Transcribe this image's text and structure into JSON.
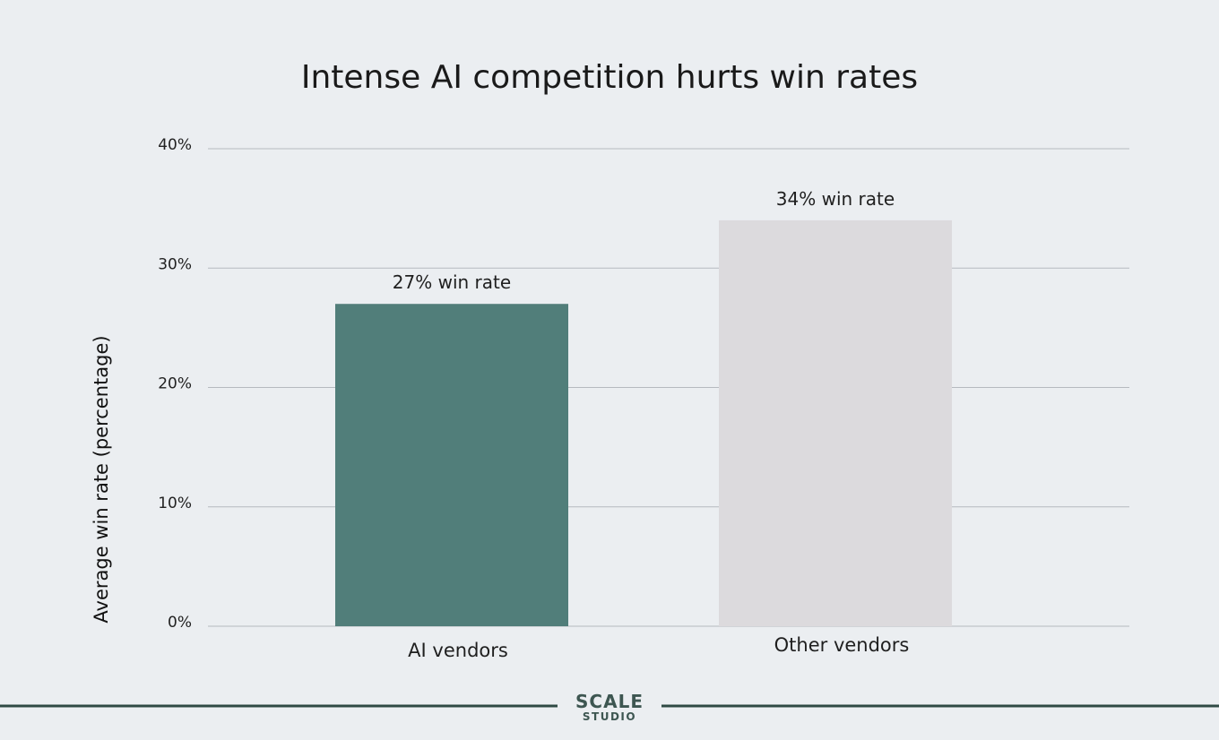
{
  "chart_data": {
    "type": "bar",
    "title": "Intense AI competition hurts win rates",
    "ylabel": "Average win rate (percentage)",
    "xlabel": "",
    "categories": [
      "AI vendors",
      "Other vendors"
    ],
    "values": [
      27,
      34
    ],
    "data_labels": [
      "27% win rate",
      "34% win rate"
    ],
    "bar_colors": [
      "#517e7a",
      "#dcdadd"
    ],
    "ylim": [
      0,
      40
    ],
    "yticks": [
      0,
      10,
      20,
      30,
      40
    ],
    "ytick_labels": [
      "0%",
      "10%",
      "20%",
      "30%",
      "40%"
    ],
    "grid": true,
    "legend": "none"
  },
  "branding": {
    "name": "SCALE",
    "sub": "STUDIO"
  },
  "colors": {
    "background": "#ebeef1",
    "accent": "#517e7a",
    "footer_line": "#2f4a44"
  }
}
